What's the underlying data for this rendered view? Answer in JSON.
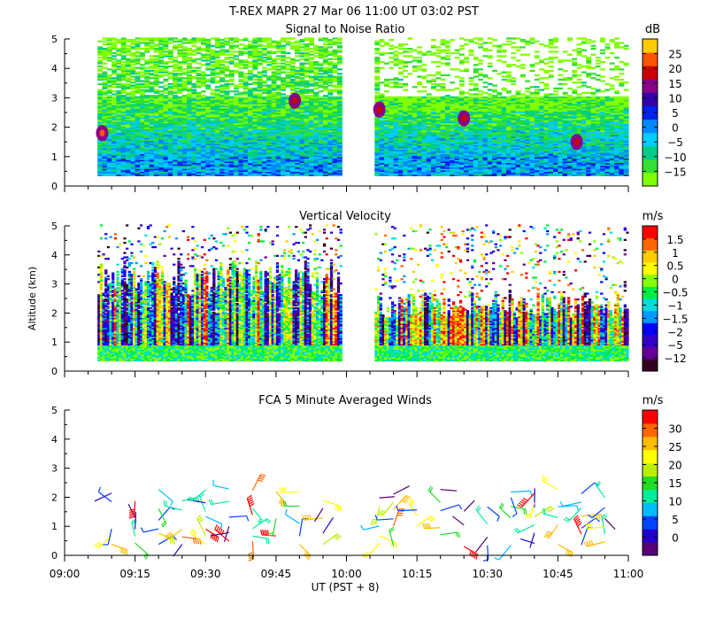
{
  "header": {
    "title": "T-REX   MAPR 27 Mar 06   11:00 UT   03:02   PST"
  },
  "xaxis": {
    "label": "UT  (PST + 8)",
    "tick_labels": [
      "09:00",
      "09:15",
      "09:30",
      "09:45",
      "10:00",
      "10:15",
      "10:30",
      "10:45",
      "11:00"
    ]
  },
  "colors": {
    "snr": [
      "#80ff00",
      "#33e033",
      "#00cc88",
      "#00ccff",
      "#0088ff",
      "#0022ee",
      "#3300aa",
      "#880088",
      "#cc0000",
      "#ff5500",
      "#ffcc00"
    ],
    "vv": [
      "#330022",
      "#660099",
      "#3300cc",
      "#0000ff",
      "#0099ff",
      "#00dddd",
      "#00ee44",
      "#88ff00",
      "#ffff00",
      "#ffcc00",
      "#ff6600",
      "#ff0000"
    ],
    "wind": [
      "#550077",
      "#2200cc",
      "#0044ff",
      "#00bbff",
      "#00ee99",
      "#22dd22",
      "#bbee00",
      "#ffff00",
      "#ffbb00",
      "#ff6600",
      "#ff0000"
    ]
  },
  "chart_data": [
    {
      "type": "heatmap",
      "title": "Signal to Noise Ratio",
      "ylabel": "",
      "ylim": [
        0,
        5
      ],
      "yticks": [
        0,
        1,
        2,
        3,
        4,
        5
      ],
      "x_range": [
        "09:00",
        "11:00"
      ],
      "colorbar": {
        "unit": "dB",
        "tick_labels": [
          "25",
          "20",
          "15",
          "10",
          "5",
          "0",
          "−5",
          "−10",
          "−15"
        ]
      },
      "data_gaps": [
        [
          "09:00",
          "09:07"
        ],
        [
          "09:59",
          "10:06"
        ]
      ],
      "valid_altitude_min": 0.35,
      "features": [
        {
          "time": "09:08",
          "alt": 1.8,
          "value": 15
        },
        {
          "time": "09:49",
          "alt": 2.9,
          "value": 10
        },
        {
          "time": "10:07",
          "alt": 2.6,
          "value": 10
        },
        {
          "time": "10:25",
          "alt": 2.3,
          "value": 10
        },
        {
          "time": "10:49",
          "alt": 1.5,
          "value": 10
        }
      ]
    },
    {
      "type": "heatmap",
      "title": "Vertical Velocity",
      "ylabel": "Altitude  (km)",
      "ylim": [
        0,
        5
      ],
      "yticks": [
        0,
        1,
        2,
        3,
        4,
        5
      ],
      "x_range": [
        "09:00",
        "11:00"
      ],
      "colorbar": {
        "unit": "m/s",
        "tick_labels": [
          "1.5",
          "1",
          "0.5",
          "0",
          "−0.5",
          "−1",
          "−1.5",
          "−2",
          "−5",
          "−12"
        ]
      },
      "data_gaps": [
        [
          "09:00",
          "09:07"
        ],
        [
          "09:59",
          "10:06"
        ]
      ],
      "valid_altitude_min": 0.35
    },
    {
      "type": "scatter",
      "title": "FCA 5 Minute Averaged Winds",
      "ylabel": "",
      "ylim": [
        0,
        5
      ],
      "yticks": [
        0,
        1,
        2,
        3,
        4,
        5
      ],
      "x_range": [
        "09:00",
        "11:00"
      ],
      "colorbar": {
        "unit": "m/s",
        "tick_labels": [
          "30",
          "25",
          "20",
          "15",
          "10",
          "5",
          "0"
        ]
      },
      "data_gaps": [
        [
          "09:59",
          "10:06"
        ]
      ],
      "barb_times": [
        "09:10",
        "09:15",
        "09:20",
        "09:25",
        "09:30",
        "09:35",
        "09:40",
        "09:45",
        "09:50",
        "09:55",
        "10:07",
        "10:10",
        "10:15",
        "10:20",
        "10:25",
        "10:30",
        "10:35",
        "10:40",
        "10:45",
        "10:50",
        "10:55"
      ],
      "barb_altitudes": [
        0.4,
        0.7,
        1.0,
        1.3,
        1.6,
        1.9,
        2.2
      ]
    }
  ]
}
